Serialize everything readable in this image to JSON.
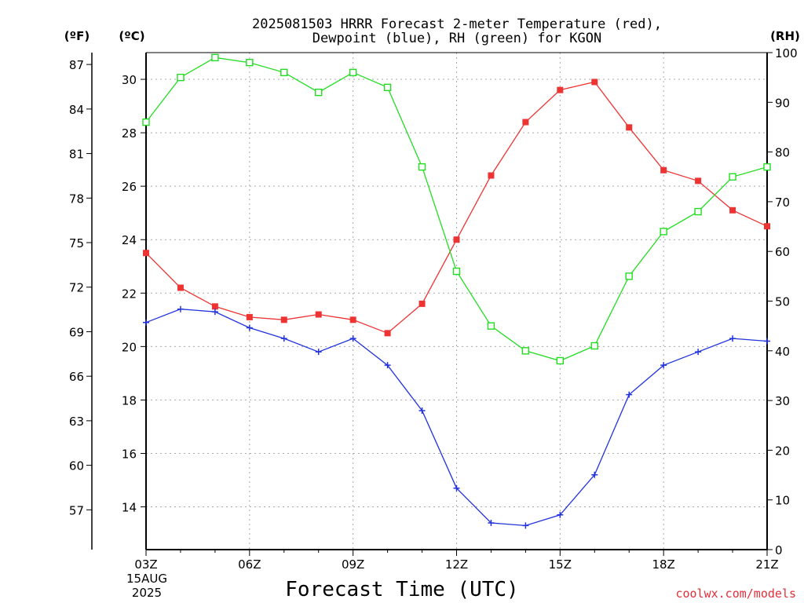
{
  "title_lines": [
    "2025081503 HRRR Forecast 2-meter Temperature (red),",
    "Dewpoint (blue), RH (green) for KGON"
  ],
  "colors": {
    "temperature": "#ee3333",
    "dewpoint": "#2233dd",
    "rh": "#22dd22",
    "grid": "#aaaaaa",
    "credit": "#e0303a"
  },
  "units": {
    "fahrenheit": "(ºF)",
    "celsius": "(ºC)",
    "rh": "(RH)"
  },
  "xlabel": "Forecast Time (UTC)",
  "date_label": [
    "15AUG",
    "2025"
  ],
  "credit": "coolwx.com/models",
  "chart_data": {
    "type": "line",
    "x": [
      "03Z",
      "04Z",
      "05Z",
      "06Z",
      "07Z",
      "08Z",
      "09Z",
      "10Z",
      "11Z",
      "12Z",
      "13Z",
      "14Z",
      "15Z",
      "16Z",
      "17Z",
      "18Z",
      "19Z",
      "20Z",
      "21Z"
    ],
    "x_tick_labels": [
      "03Z",
      "06Z",
      "09Z",
      "12Z",
      "15Z",
      "18Z",
      "21Z"
    ],
    "celsius_axis": {
      "ticks": [
        14,
        16,
        18,
        20,
        22,
        24,
        26,
        28,
        30
      ],
      "range": [
        12.4,
        31
      ]
    },
    "fahrenheit_axis": {
      "ticks": [
        57,
        60,
        63,
        66,
        69,
        72,
        75,
        78,
        81,
        84,
        87
      ]
    },
    "rh_axis": {
      "ticks": [
        0,
        10,
        20,
        30,
        40,
        50,
        60,
        70,
        80,
        90,
        100
      ],
      "range": [
        0,
        100
      ]
    },
    "grid": true,
    "series": [
      {
        "name": "Temperature",
        "axis": "celsius",
        "marker": "filled-square",
        "values": [
          23.5,
          22.2,
          21.5,
          21.1,
          21.0,
          21.2,
          21.0,
          20.5,
          21.6,
          24.0,
          26.4,
          28.4,
          29.6,
          29.9,
          28.2,
          26.6,
          26.2,
          25.1,
          24.5
        ]
      },
      {
        "name": "Dewpoint",
        "axis": "celsius",
        "marker": "plus",
        "values": [
          20.9,
          21.4,
          21.3,
          20.7,
          20.3,
          19.8,
          20.3,
          19.3,
          17.6,
          14.7,
          13.4,
          13.3,
          13.7,
          15.2,
          18.2,
          19.3,
          19.8,
          20.3,
          20.2
        ]
      },
      {
        "name": "RH",
        "axis": "rh",
        "marker": "open-square",
        "values": [
          86,
          95,
          99,
          98,
          96,
          92,
          96,
          93,
          77,
          56,
          45,
          40,
          38,
          41,
          55,
          64,
          68,
          75,
          77
        ]
      }
    ]
  }
}
